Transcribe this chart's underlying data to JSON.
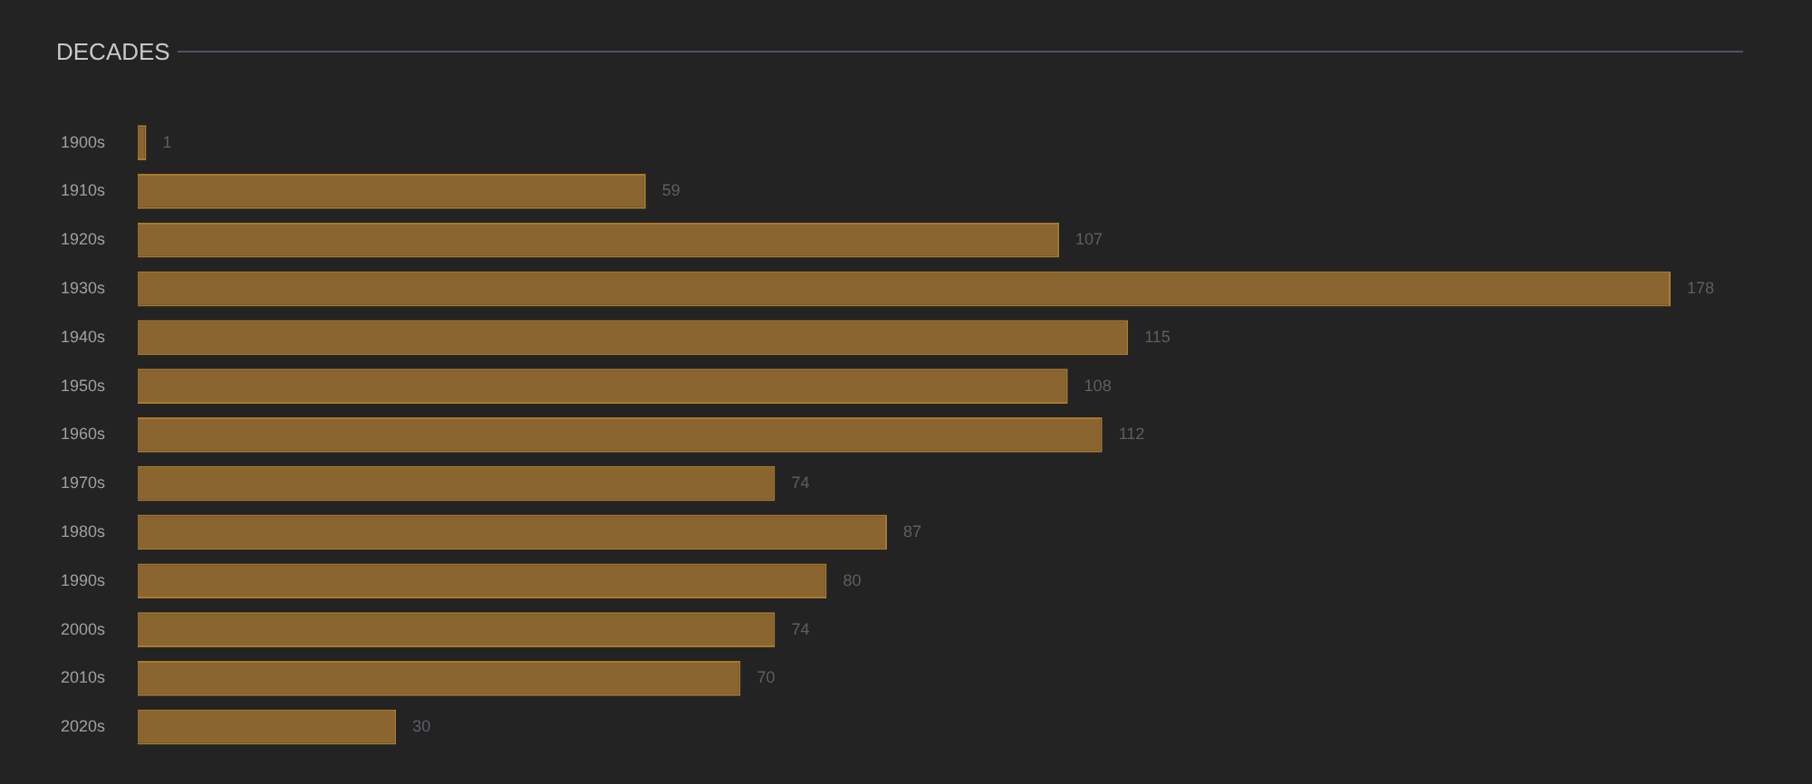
{
  "chart_data": {
    "type": "bar",
    "title": "DECADES",
    "orientation": "horizontal",
    "categories": [
      "1900s",
      "1910s",
      "1920s",
      "1930s",
      "1940s",
      "1950s",
      "1960s",
      "1970s",
      "1980s",
      "1990s",
      "2000s",
      "2010s",
      "2020s"
    ],
    "values": [
      1,
      59,
      107,
      178,
      115,
      108,
      112,
      74,
      87,
      80,
      74,
      70,
      30
    ],
    "color": "#8a6530",
    "data_labels": true
  }
}
